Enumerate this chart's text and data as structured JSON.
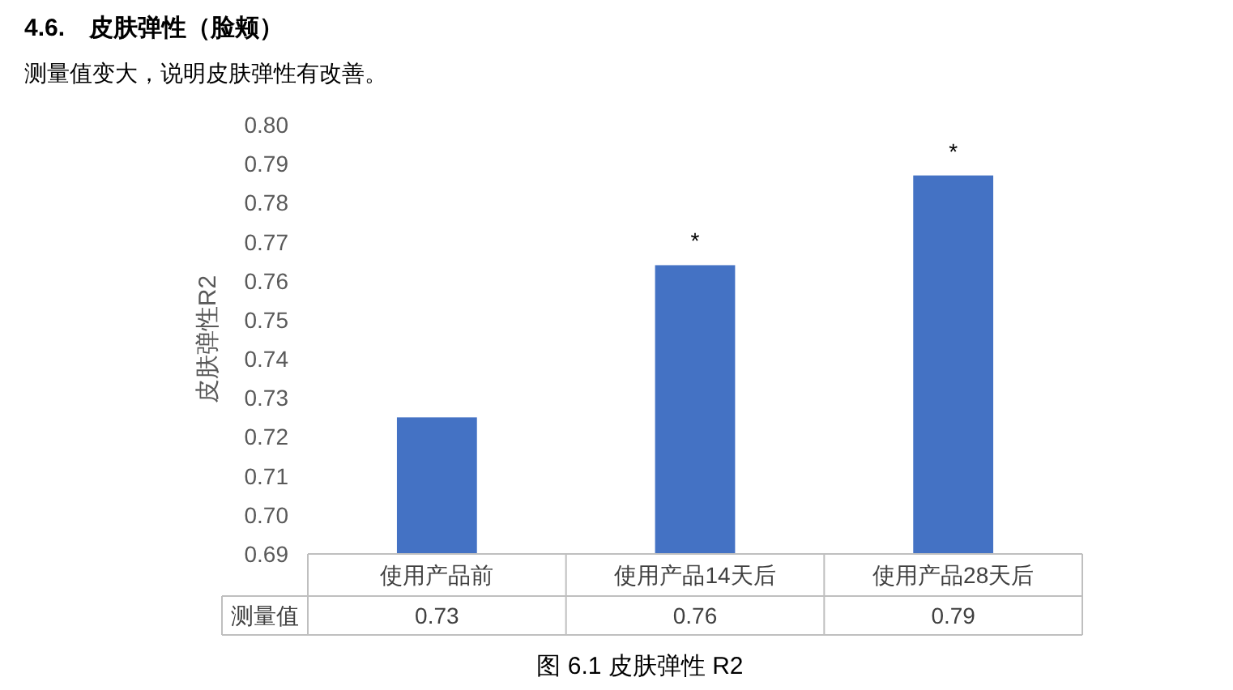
{
  "chart_data": {
    "type": "bar",
    "title": "4.6.　皮肤弹性（脸颊）",
    "subtitle": "测量值变大，说明皮肤弹性有改善。",
    "ylabel": "皮肤弹性R2",
    "categories": [
      "使用产品前",
      "使用产品14天后",
      "使用产品28天后"
    ],
    "values": [
      0.725,
      0.764,
      0.787
    ],
    "color": "#4472c4",
    "value_labels": [
      "0.73",
      "0.76",
      "0.79"
    ],
    "legend_title": "测量值",
    "ylim": [
      0.69,
      0.8
    ],
    "yticks": [
      {
        "value": 0.69,
        "label": "0.69"
      },
      {
        "value": 0.7,
        "label": "0.70"
      },
      {
        "value": 0.71,
        "label": "0.71"
      },
      {
        "value": 0.72,
        "label": "0.72"
      },
      {
        "value": 0.73,
        "label": "0.73"
      },
      {
        "value": 0.74,
        "label": "0.74"
      },
      {
        "value": 0.75,
        "label": "0.75"
      },
      {
        "value": 0.76,
        "label": "0.76"
      },
      {
        "value": 0.77,
        "label": "0.77"
      },
      {
        "value": 0.78,
        "label": "0.78"
      },
      {
        "value": 0.79,
        "label": "0.79"
      },
      {
        "value": 0.8,
        "label": "0.80"
      }
    ],
    "grid": false,
    "legend": false,
    "annotations": [
      {
        "text": "*",
        "x": "使用产品14天后",
        "y": 0.764
      },
      {
        "text": "*",
        "x": "使用产品28天后",
        "y": 0.787
      },
      "图 6.1 皮肤弹性 R2"
    ]
  }
}
